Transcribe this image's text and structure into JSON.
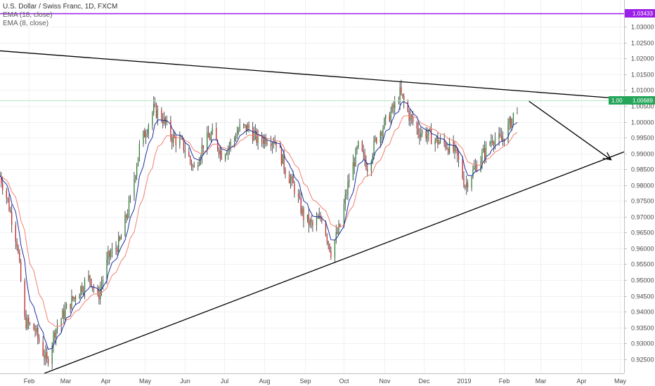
{
  "chart_data": {
    "type": "candlestick",
    "title": "U.S. Dollar / Swiss Franc, 1D, FXCM",
    "indicators": [
      {
        "label": "EMA (18, close)",
        "color": "#f08070"
      },
      {
        "label": "EMA (8, close)",
        "color": "#1f2fa0"
      }
    ],
    "ylim": [
      0.9205,
      1.0385
    ],
    "y_ticks": [
      "0.92500",
      "0.93000",
      "0.93500",
      "0.94000",
      "0.94500",
      "0.95000",
      "0.95500",
      "0.96000",
      "0.96500",
      "0.97000",
      "0.97500",
      "0.98000",
      "0.98500",
      "0.99000",
      "0.99500",
      "1.00000",
      "1.00500",
      "1.01000",
      "1.01500",
      "1.02000",
      "1.02500",
      "1.03000"
    ],
    "y_tick_values": [
      0.925,
      0.93,
      0.935,
      0.94,
      0.945,
      0.95,
      0.955,
      0.96,
      0.965,
      0.97,
      0.975,
      0.98,
      0.985,
      0.99,
      0.995,
      1.0,
      1.005,
      1.01,
      1.015,
      1.02,
      1.025,
      1.03
    ],
    "x_ticks": [
      "Feb",
      "Mar",
      "Apr",
      "May",
      "Jun",
      "Jul",
      "Aug",
      "Sep",
      "Oct",
      "Nov",
      "Dec",
      "2019",
      "Feb",
      "Mar",
      "Apr",
      "May"
    ],
    "x_tick_dates": [
      "2018-02-01",
      "2018-03-01",
      "2018-04-01",
      "2018-05-01",
      "2018-06-01",
      "2018-07-01",
      "2018-08-01",
      "2018-09-01",
      "2018-10-01",
      "2018-11-01",
      "2018-12-01",
      "2019-01-01",
      "2019-02-01",
      "2019-03-01",
      "2019-04-01",
      "2019-05-01"
    ],
    "date_range": [
      "2018-01-10",
      "2019-05-04"
    ],
    "series_range": [
      "2018-01-10",
      "2019-02-11"
    ],
    "last_price": "1.00689",
    "last_price_value": 1.00689,
    "overlay_tag": "1.00",
    "resistance_level": "1.03433",
    "resistance_value": 1.03433,
    "price_anchors": [
      [
        "2018-01-10",
        0.983
      ],
      [
        "2018-01-16",
        0.975
      ],
      [
        "2018-01-23",
        0.962
      ],
      [
        "2018-01-29",
        0.937
      ],
      [
        "2018-02-06",
        0.934
      ],
      [
        "2018-02-15",
        0.924
      ],
      [
        "2018-02-21",
        0.934
      ],
      [
        "2018-03-02",
        0.941
      ],
      [
        "2018-03-12",
        0.947
      ],
      [
        "2018-03-20",
        0.951
      ],
      [
        "2018-03-26",
        0.944
      ],
      [
        "2018-04-03",
        0.957
      ],
      [
        "2018-04-12",
        0.962
      ],
      [
        "2018-04-20",
        0.975
      ],
      [
        "2018-04-27",
        0.992
      ],
      [
        "2018-05-08",
        1.004
      ],
      [
        "2018-05-15",
        1.001
      ],
      [
        "2018-05-22",
        0.995
      ],
      [
        "2018-05-30",
        0.993
      ],
      [
        "2018-06-08",
        0.985
      ],
      [
        "2018-06-15",
        0.993
      ],
      [
        "2018-06-22",
        0.996
      ],
      [
        "2018-06-29",
        0.99
      ],
      [
        "2018-07-06",
        0.993
      ],
      [
        "2018-07-13",
        0.998
      ],
      [
        "2018-07-20",
        0.998
      ],
      [
        "2018-07-27",
        0.994
      ],
      [
        "2018-08-03",
        0.995
      ],
      [
        "2018-08-10",
        0.994
      ],
      [
        "2018-08-17",
        0.985
      ],
      [
        "2018-08-24",
        0.979
      ],
      [
        "2018-08-31",
        0.97
      ],
      [
        "2018-09-07",
        0.967
      ],
      [
        "2018-09-14",
        0.97
      ],
      [
        "2018-09-21",
        0.959
      ],
      [
        "2018-09-28",
        0.967
      ],
      [
        "2018-10-05",
        0.982
      ],
      [
        "2018-10-12",
        0.992
      ],
      [
        "2018-10-19",
        0.986
      ],
      [
        "2018-10-26",
        0.995
      ],
      [
        "2018-11-02",
        1.0
      ],
      [
        "2018-11-09",
        1.005
      ],
      [
        "2018-11-13",
        1.009
      ],
      [
        "2018-11-20",
        1.002
      ],
      [
        "2018-11-27",
        0.997
      ],
      [
        "2018-12-04",
        0.996
      ],
      [
        "2018-12-11",
        0.994
      ],
      [
        "2018-12-18",
        0.993
      ],
      [
        "2018-12-26",
        0.99
      ],
      [
        "2019-01-02",
        0.98
      ],
      [
        "2019-01-09",
        0.985
      ],
      [
        "2019-01-16",
        0.99
      ],
      [
        "2019-01-23",
        0.995
      ],
      [
        "2019-01-30",
        0.994
      ],
      [
        "2019-02-06",
        1.0
      ],
      [
        "2019-02-11",
        1.005
      ]
    ],
    "annotations": [
      {
        "label": "descending-resistance-trendline",
        "from": [
          "2018-01-08",
          1.0225
        ],
        "to": [
          "2019-04-26",
          1.0075
        ]
      },
      {
        "label": "ascending-support-trendline",
        "from": [
          "2018-02-13",
          0.9205
        ],
        "to": [
          "2019-05-04",
          0.9905
        ]
      },
      {
        "label": "projection-arrow",
        "from": [
          "2019-02-20",
          1.0065
        ],
        "to": [
          "2019-04-24",
          0.988
        ]
      }
    ],
    "grid": true,
    "legend": "top-left"
  }
}
